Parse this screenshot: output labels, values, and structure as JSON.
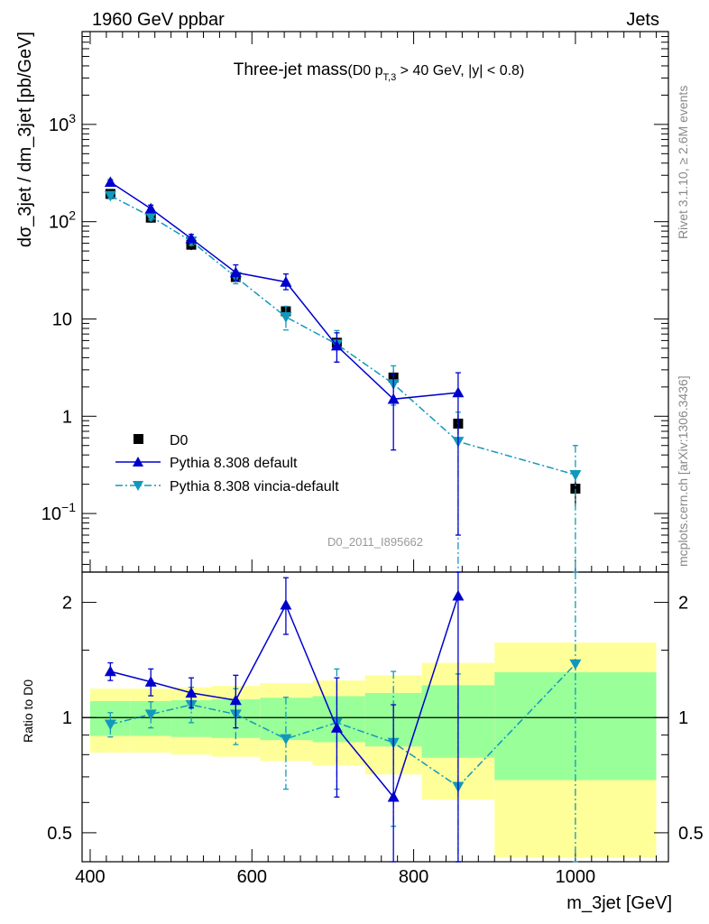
{
  "header": {
    "left": "1960 GeV ppbar",
    "right": "Jets"
  },
  "title": {
    "main": "Three-jet mass",
    "cond_prefix": "(D0 p",
    "cond_sub": "T,3",
    "cond_suffix": " > 40 GeV, |y| < 0.8)"
  },
  "side": {
    "rivet": "Rivet 3.1.10, ≥ 2.6M events",
    "mcplots": "mcplots.cern.ch [arXiv:1306.3436]"
  },
  "analysis_id": "D0_2011_I895662",
  "colors": {
    "data": "#000000",
    "default": "#0000cc",
    "vincia": "#1199bb",
    "band_inner": "#99ff99",
    "band_outer": "#ffff99"
  },
  "chart_data": [
    {
      "type": "scatter",
      "panel": "main",
      "ylabel": "dσ_3jet / dm_3jet [pb/GeV]",
      "yscale": "log",
      "xlim": [
        390,
        1115
      ],
      "ylim": [
        0.025,
        9000
      ],
      "yticks": [
        {
          "value": 0.1,
          "base": "10",
          "exp": "−1"
        },
        {
          "value": 1,
          "base": "1",
          "exp": ""
        },
        {
          "value": 10,
          "base": "10",
          "exp": ""
        },
        {
          "value": 100,
          "base": "10",
          "exp": "2"
        },
        {
          "value": 1000,
          "base": "10",
          "exp": "3"
        }
      ],
      "legend": {
        "placement": "bottom-left",
        "entries": [
          "D0",
          "Pythia 8.308 default",
          "Pythia 8.308 vincia-default"
        ]
      },
      "series": [
        {
          "name": "D0",
          "style": "square",
          "x": [
            425,
            475,
            525,
            580,
            642,
            705,
            775,
            855,
            1000
          ],
          "xlo": [
            400,
            450,
            500,
            550,
            610,
            675,
            740,
            810,
            900
          ],
          "xhi": [
            450,
            500,
            550,
            610,
            675,
            740,
            810,
            900,
            1100
          ],
          "y": [
            193,
            110,
            58,
            27,
            12,
            5.7,
            2.5,
            0.84,
            0.18
          ],
          "rel_stat": [
            0.04,
            0.05,
            0.05,
            0.06,
            0.08,
            0.1,
            0.14,
            0.17,
            0.23
          ],
          "rel_total": [
            0.19,
            0.19,
            0.2,
            0.21,
            0.23,
            0.25,
            0.29,
            0.39,
            0.57
          ]
        },
        {
          "name": "Pythia 8.308 default",
          "style": "triangle-up",
          "line": "solid",
          "x": [
            425,
            475,
            525,
            580,
            642,
            705,
            775,
            855
          ],
          "y": [
            255,
            136,
            67,
            30,
            24,
            5.3,
            1.5,
            1.75
          ],
          "ylo": [
            240,
            125,
            61,
            25,
            20,
            3.6,
            0.45,
            0.06
          ],
          "yhi": [
            270,
            148,
            74,
            36,
            29,
            7.2,
            2.7,
            2.8
          ]
        },
        {
          "name": "Pythia 8.308 vincia-default",
          "style": "triangle-down",
          "line": "dashdot",
          "x": [
            425,
            475,
            525,
            580,
            642,
            705,
            775,
            855,
            1000
          ],
          "y": [
            185,
            113,
            63,
            27,
            10.5,
            5.5,
            2.15,
            0.55,
            0.25
          ],
          "ylo": [
            172,
            104,
            57,
            23,
            7.7,
            3.6,
            1.3,
            0.02,
            0.02
          ],
          "yhi": [
            198,
            122,
            70,
            31,
            13.5,
            7.6,
            3.3,
            1.1,
            0.5
          ]
        }
      ]
    },
    {
      "type": "scatter",
      "panel": "ratio",
      "xlabel": "m_3jet [GeV]",
      "ylabel": "Ratio to D0",
      "yscale": "log",
      "xlim": [
        390,
        1115
      ],
      "ylim": [
        0.42,
        2.4
      ],
      "xticks": [
        400,
        600,
        800,
        1000
      ],
      "yticks": [
        0.5,
        1,
        2
      ],
      "series": [
        {
          "name": "Pythia 8.308 default",
          "style": "triangle-up",
          "line": "solid",
          "x": [
            425,
            475,
            525,
            580,
            642,
            705,
            775,
            855
          ],
          "y": [
            1.32,
            1.24,
            1.16,
            1.11,
            1.97,
            0.94,
            0.62,
            2.08
          ],
          "ylo": [
            1.25,
            1.14,
            1.06,
            0.94,
            1.65,
            0.62,
            0.18,
            0.06
          ],
          "yhi": [
            1.39,
            1.34,
            1.27,
            1.29,
            2.32,
            1.27,
            1.08,
            3.0
          ]
        },
        {
          "name": "Pythia 8.308 vincia-default",
          "style": "triangle-down",
          "line": "dashdot",
          "x": [
            425,
            475,
            525,
            580,
            642,
            705,
            775,
            855,
            1000
          ],
          "y": [
            0.96,
            1.02,
            1.08,
            1.02,
            0.88,
            0.97,
            0.86,
            0.66,
            1.38
          ],
          "ylo": [
            0.89,
            0.94,
            0.97,
            0.85,
            0.65,
            0.65,
            0.52,
            0.02,
            0.02
          ],
          "yhi": [
            1.03,
            1.1,
            1.2,
            1.19,
            1.13,
            1.34,
            1.32,
            1.3,
            3.0
          ]
        }
      ]
    }
  ]
}
